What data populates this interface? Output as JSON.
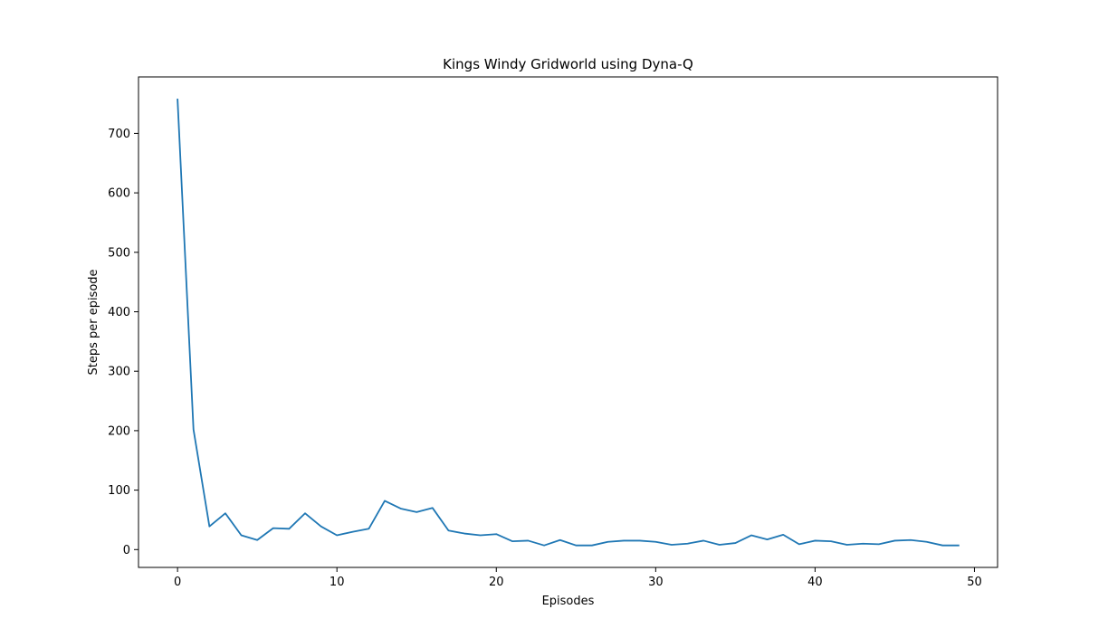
{
  "chart_data": {
    "type": "line",
    "title": "Kings Windy Gridworld using Dyna-Q",
    "xlabel": "Episodes",
    "ylabel": "Steps per episode",
    "xlim": [
      -2.45,
      51.45
    ],
    "ylim": [
      -30,
      795
    ],
    "xticks": [
      0,
      10,
      20,
      30,
      40,
      50
    ],
    "yticks": [
      0,
      100,
      200,
      300,
      400,
      500,
      600,
      700
    ],
    "grid": false,
    "legend": "none",
    "series": [
      {
        "color": "#1f77b4",
        "x": [
          0,
          1,
          2,
          3,
          4,
          5,
          6,
          7,
          8,
          9,
          10,
          11,
          12,
          13,
          14,
          15,
          16,
          17,
          18,
          19,
          20,
          21,
          22,
          23,
          24,
          25,
          26,
          27,
          28,
          29,
          30,
          31,
          32,
          33,
          34,
          35,
          36,
          37,
          38,
          39,
          40,
          41,
          42,
          43,
          44,
          45,
          46,
          47,
          48,
          49
        ],
        "values": [
          757,
          202,
          39,
          61,
          24,
          16,
          36,
          35,
          61,
          39,
          24,
          30,
          35,
          82,
          69,
          63,
          70,
          32,
          27,
          24,
          26,
          14,
          15,
          7,
          16,
          7,
          7,
          13,
          15,
          15,
          13,
          8,
          10,
          15,
          8,
          11,
          24,
          17,
          25,
          9,
          15,
          14,
          8,
          10,
          9,
          15,
          16,
          13,
          7,
          7
        ]
      }
    ]
  }
}
